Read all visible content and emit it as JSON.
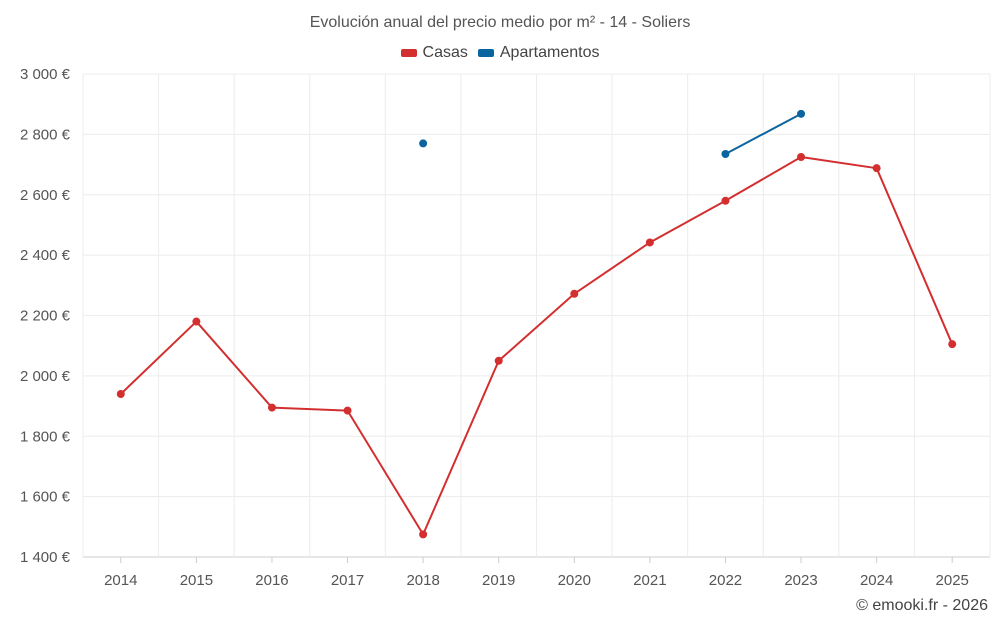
{
  "chart_data": {
    "type": "line",
    "title": "Evolución anual del precio medio por m² - 14 - Soliers",
    "xlabel": "",
    "ylabel": "",
    "categories": [
      "2014",
      "2015",
      "2016",
      "2017",
      "2018",
      "2019",
      "2020",
      "2021",
      "2022",
      "2023",
      "2024",
      "2025"
    ],
    "ylim": [
      1400,
      3000
    ],
    "yticks": [
      1400,
      1600,
      1800,
      2000,
      2200,
      2400,
      2600,
      2800,
      3000
    ],
    "ytick_labels": [
      "1 400 €",
      "1 600 €",
      "1 800 €",
      "2 000 €",
      "2 200 €",
      "2 400 €",
      "2 600 €",
      "2 800 €",
      "3 000 €"
    ],
    "grid": true,
    "legend_position": "top-center",
    "series": [
      {
        "name": "Casas",
        "color": "#d32f2f",
        "values": [
          1940,
          2180,
          1895,
          1885,
          1475,
          2050,
          2272,
          2442,
          2580,
          2725,
          2688,
          2105
        ]
      },
      {
        "name": "Apartamentos",
        "color": "#0b64a0",
        "values": [
          null,
          null,
          null,
          null,
          2770,
          null,
          null,
          null,
          2735,
          2868,
          null,
          null
        ]
      }
    ]
  },
  "footer": {
    "credit": "© emooki.fr - 2026"
  }
}
